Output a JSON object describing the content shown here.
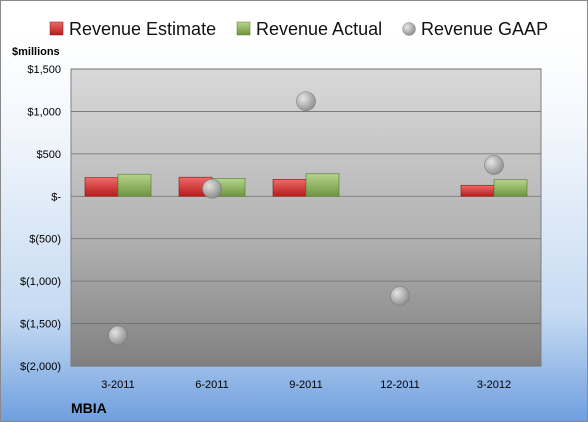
{
  "company": "MBIA",
  "colors": {
    "estimate": "#d9262c",
    "actual": "#8db35a",
    "gaap": "#a6a6a6",
    "plot_top": "#d9d9d9",
    "plot_bottom": "#808080"
  },
  "chart_data": {
    "type": "bar",
    "ylabel": "$millions",
    "categories": [
      "3-2011",
      "6-2011",
      "9-2011",
      "12-2011",
      "3-2012"
    ],
    "yticks": [
      "$1,500",
      "$1,000",
      "$500",
      "$-",
      "$(500)",
      "$(1,000)",
      "$(1,500)",
      "$(2,000)"
    ],
    "ylim": [
      -2000,
      1500
    ],
    "grid": true,
    "legend_position": "top",
    "series": [
      {
        "name": "Revenue Estimate",
        "kind": "bar",
        "values": [
          220,
          225,
          200,
          null,
          130
        ]
      },
      {
        "name": "Revenue Actual",
        "kind": "bar",
        "values": [
          260,
          210,
          265,
          null,
          195
        ]
      },
      {
        "name": "Revenue GAAP",
        "kind": "scatter",
        "values": [
          -1640,
          90,
          1120,
          -1175,
          370
        ]
      }
    ]
  }
}
